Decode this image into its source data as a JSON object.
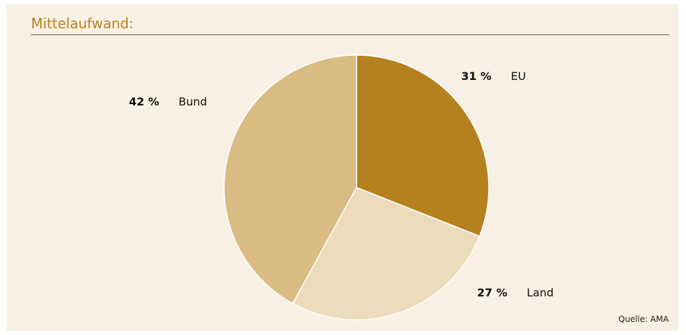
{
  "title": "Mittelaufwand:",
  "source": "Quelle: AMA",
  "chart_data": {
    "type": "pie",
    "title": "Mittelaufwand:",
    "slices": [
      {
        "name": "EU",
        "value": 31,
        "label": "31 %",
        "color": "#b5811f"
      },
      {
        "name": "Land",
        "value": 27,
        "label": "27 %",
        "color": "#ecdcbc"
      },
      {
        "name": "Bund",
        "value": 42,
        "label": "42 %",
        "color": "#d9bc83"
      }
    ],
    "start_angle_deg": 0,
    "direction": "clockwise",
    "legend": "none"
  }
}
